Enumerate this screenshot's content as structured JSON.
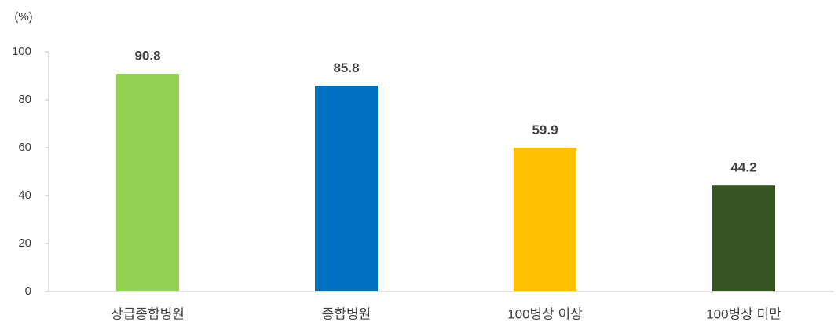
{
  "chart_data": {
    "type": "bar",
    "y_axis_label": "(%)",
    "categories": [
      "상급종합병원",
      "종합병원",
      "100병상 이상",
      "100병상 미만"
    ],
    "values": [
      90.8,
      85.8,
      59.9,
      44.2
    ],
    "colors": [
      "#92d050",
      "#0070c0",
      "#ffc000",
      "#375623"
    ],
    "ylim": [
      0,
      100
    ],
    "yticks": [
      0,
      20,
      40,
      60,
      80,
      100
    ],
    "grid": false
  }
}
